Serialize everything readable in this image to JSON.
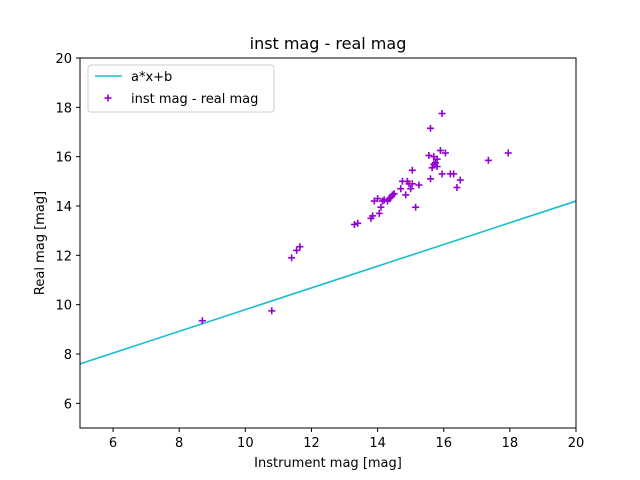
{
  "chart_data": {
    "type": "scatter",
    "title": "inst mag - real mag",
    "xlabel": "Instrument mag [mag]",
    "ylabel": "Real mag [mag]",
    "xlim": [
      5,
      20
    ],
    "ylim": [
      5,
      20
    ],
    "xticks": [
      6,
      8,
      10,
      12,
      14,
      16,
      18,
      20
    ],
    "yticks": [
      6,
      8,
      10,
      12,
      14,
      16,
      18,
      20
    ],
    "grid": false,
    "legend_position": "top-left",
    "colors": {
      "line": "#17becf",
      "points": "#9400d3"
    },
    "series": [
      {
        "name": "a*x+b",
        "type": "line",
        "x": [
          5,
          20
        ],
        "y": [
          7.6,
          14.2
        ]
      },
      {
        "name": "inst mag - real mag",
        "type": "scatter",
        "marker": "plus",
        "x": [
          8.7,
          10.8,
          11.4,
          11.55,
          11.65,
          13.3,
          13.4,
          13.8,
          13.85,
          13.9,
          14.0,
          14.05,
          14.1,
          14.15,
          14.2,
          14.3,
          14.35,
          14.4,
          14.45,
          14.5,
          14.7,
          14.75,
          14.85,
          14.9,
          14.95,
          15.0,
          15.05,
          15.05,
          15.15,
          15.25,
          15.55,
          15.6,
          15.6,
          15.65,
          15.7,
          15.7,
          15.75,
          15.8,
          15.8,
          15.9,
          15.95,
          15.95,
          16.05,
          16.2,
          16.3,
          16.4,
          16.5,
          17.35,
          17.95
        ],
        "y": [
          9.35,
          9.75,
          11.9,
          12.2,
          12.35,
          13.25,
          13.3,
          13.5,
          13.6,
          14.2,
          14.3,
          13.7,
          13.95,
          14.2,
          14.25,
          14.2,
          14.3,
          14.35,
          14.45,
          14.5,
          14.7,
          15.0,
          14.45,
          15.0,
          14.9,
          14.7,
          14.9,
          15.45,
          13.95,
          14.85,
          16.05,
          17.15,
          15.1,
          15.55,
          15.7,
          16.0,
          15.75,
          15.6,
          15.9,
          16.25,
          15.3,
          17.75,
          16.15,
          15.3,
          15.3,
          14.75,
          15.05,
          15.85,
          16.15
        ]
      }
    ]
  }
}
